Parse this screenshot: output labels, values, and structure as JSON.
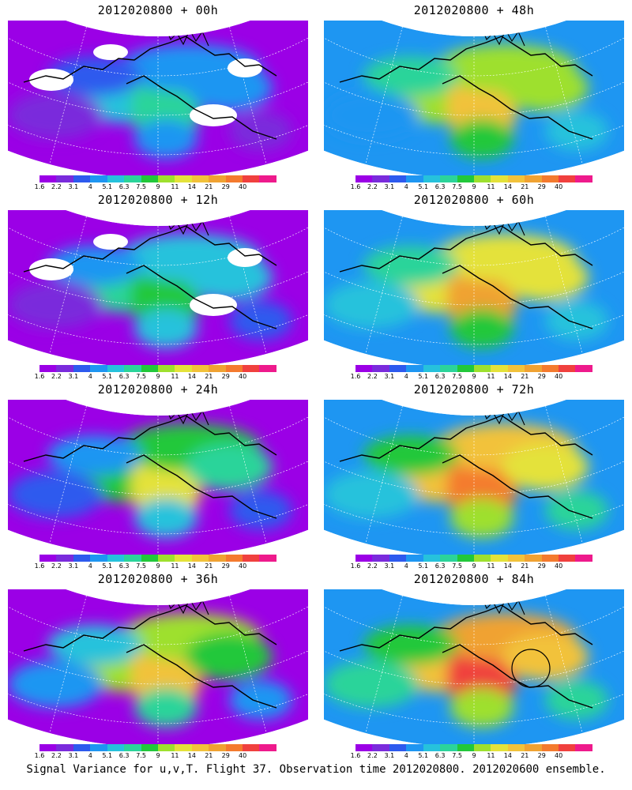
{
  "panels": [
    {
      "title": "2012020800 + 00h",
      "lead": "00h"
    },
    {
      "title": "2012020800 + 48h",
      "lead": "48h"
    },
    {
      "title": "2012020800 + 12h",
      "lead": "12h"
    },
    {
      "title": "2012020800 + 60h",
      "lead": "60h"
    },
    {
      "title": "2012020800 + 24h",
      "lead": "24h"
    },
    {
      "title": "2012020800 + 72h",
      "lead": "72h"
    },
    {
      "title": "2012020800 + 36h",
      "lead": "36h"
    },
    {
      "title": "2012020800 + 84h",
      "lead": "84h"
    }
  ],
  "colorbar": {
    "labels": [
      "1.6",
      "2.2",
      "3.1",
      "4",
      "5.1",
      "6.3",
      "7.5",
      "9",
      "11",
      "14",
      "21",
      "29",
      "40"
    ],
    "colors": [
      "#9b00e6",
      "#7a2bdc",
      "#2d5aee",
      "#1e96f2",
      "#26c2dc",
      "#2bd49a",
      "#22c83a",
      "#9ee02e",
      "#e4e23a",
      "#f2c23a",
      "#f0a232",
      "#f47a2e",
      "#f0403e",
      "#ee1a8c"
    ]
  },
  "caption": "Signal Variance for u,v,T. Flight 37. Observation time 2012020800. 2012020600 ensemble."
}
